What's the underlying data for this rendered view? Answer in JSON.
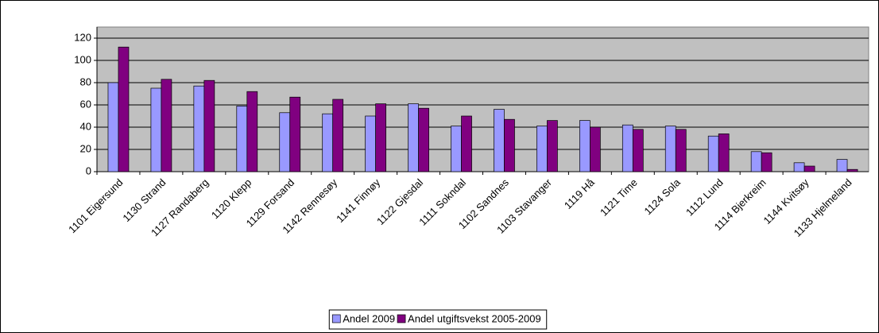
{
  "chart_data": {
    "type": "bar",
    "categories": [
      "1101 Eigersund",
      "1130 Strand",
      "1127 Randaberg",
      "1120 Klepp",
      "1129 Forsand",
      "1142 Rennesøy",
      "1141 Finnøy",
      "1122 Gjesdal",
      "1111 Sokndal",
      "1102 Sandnes",
      "1103 Stavanger",
      "1119 Hå",
      "1121 Time",
      "1124 Sola",
      "1112 Lund",
      "1114 Bjerkreim",
      "1144 Kvitsøy",
      "1133 Hjelmeland"
    ],
    "series": [
      {
        "name": "Andel 2009",
        "color": "#9999ff",
        "values": [
          80,
          75,
          77,
          59,
          53,
          52,
          50,
          61,
          41,
          56,
          41,
          46,
          42,
          41,
          32,
          18,
          8,
          11
        ]
      },
      {
        "name": "Andel utgiftsvekst 2005-2009",
        "color": "#800080",
        "values": [
          112,
          83,
          82,
          72,
          67,
          65,
          61,
          57,
          50,
          47,
          46,
          40,
          38,
          38,
          34,
          17,
          5,
          2
        ]
      }
    ],
    "ylim": [
      0,
      120
    ],
    "yticks": [
      0,
      20,
      40,
      60,
      80,
      100,
      120
    ],
    "grid": true,
    "legend": "bottom"
  }
}
